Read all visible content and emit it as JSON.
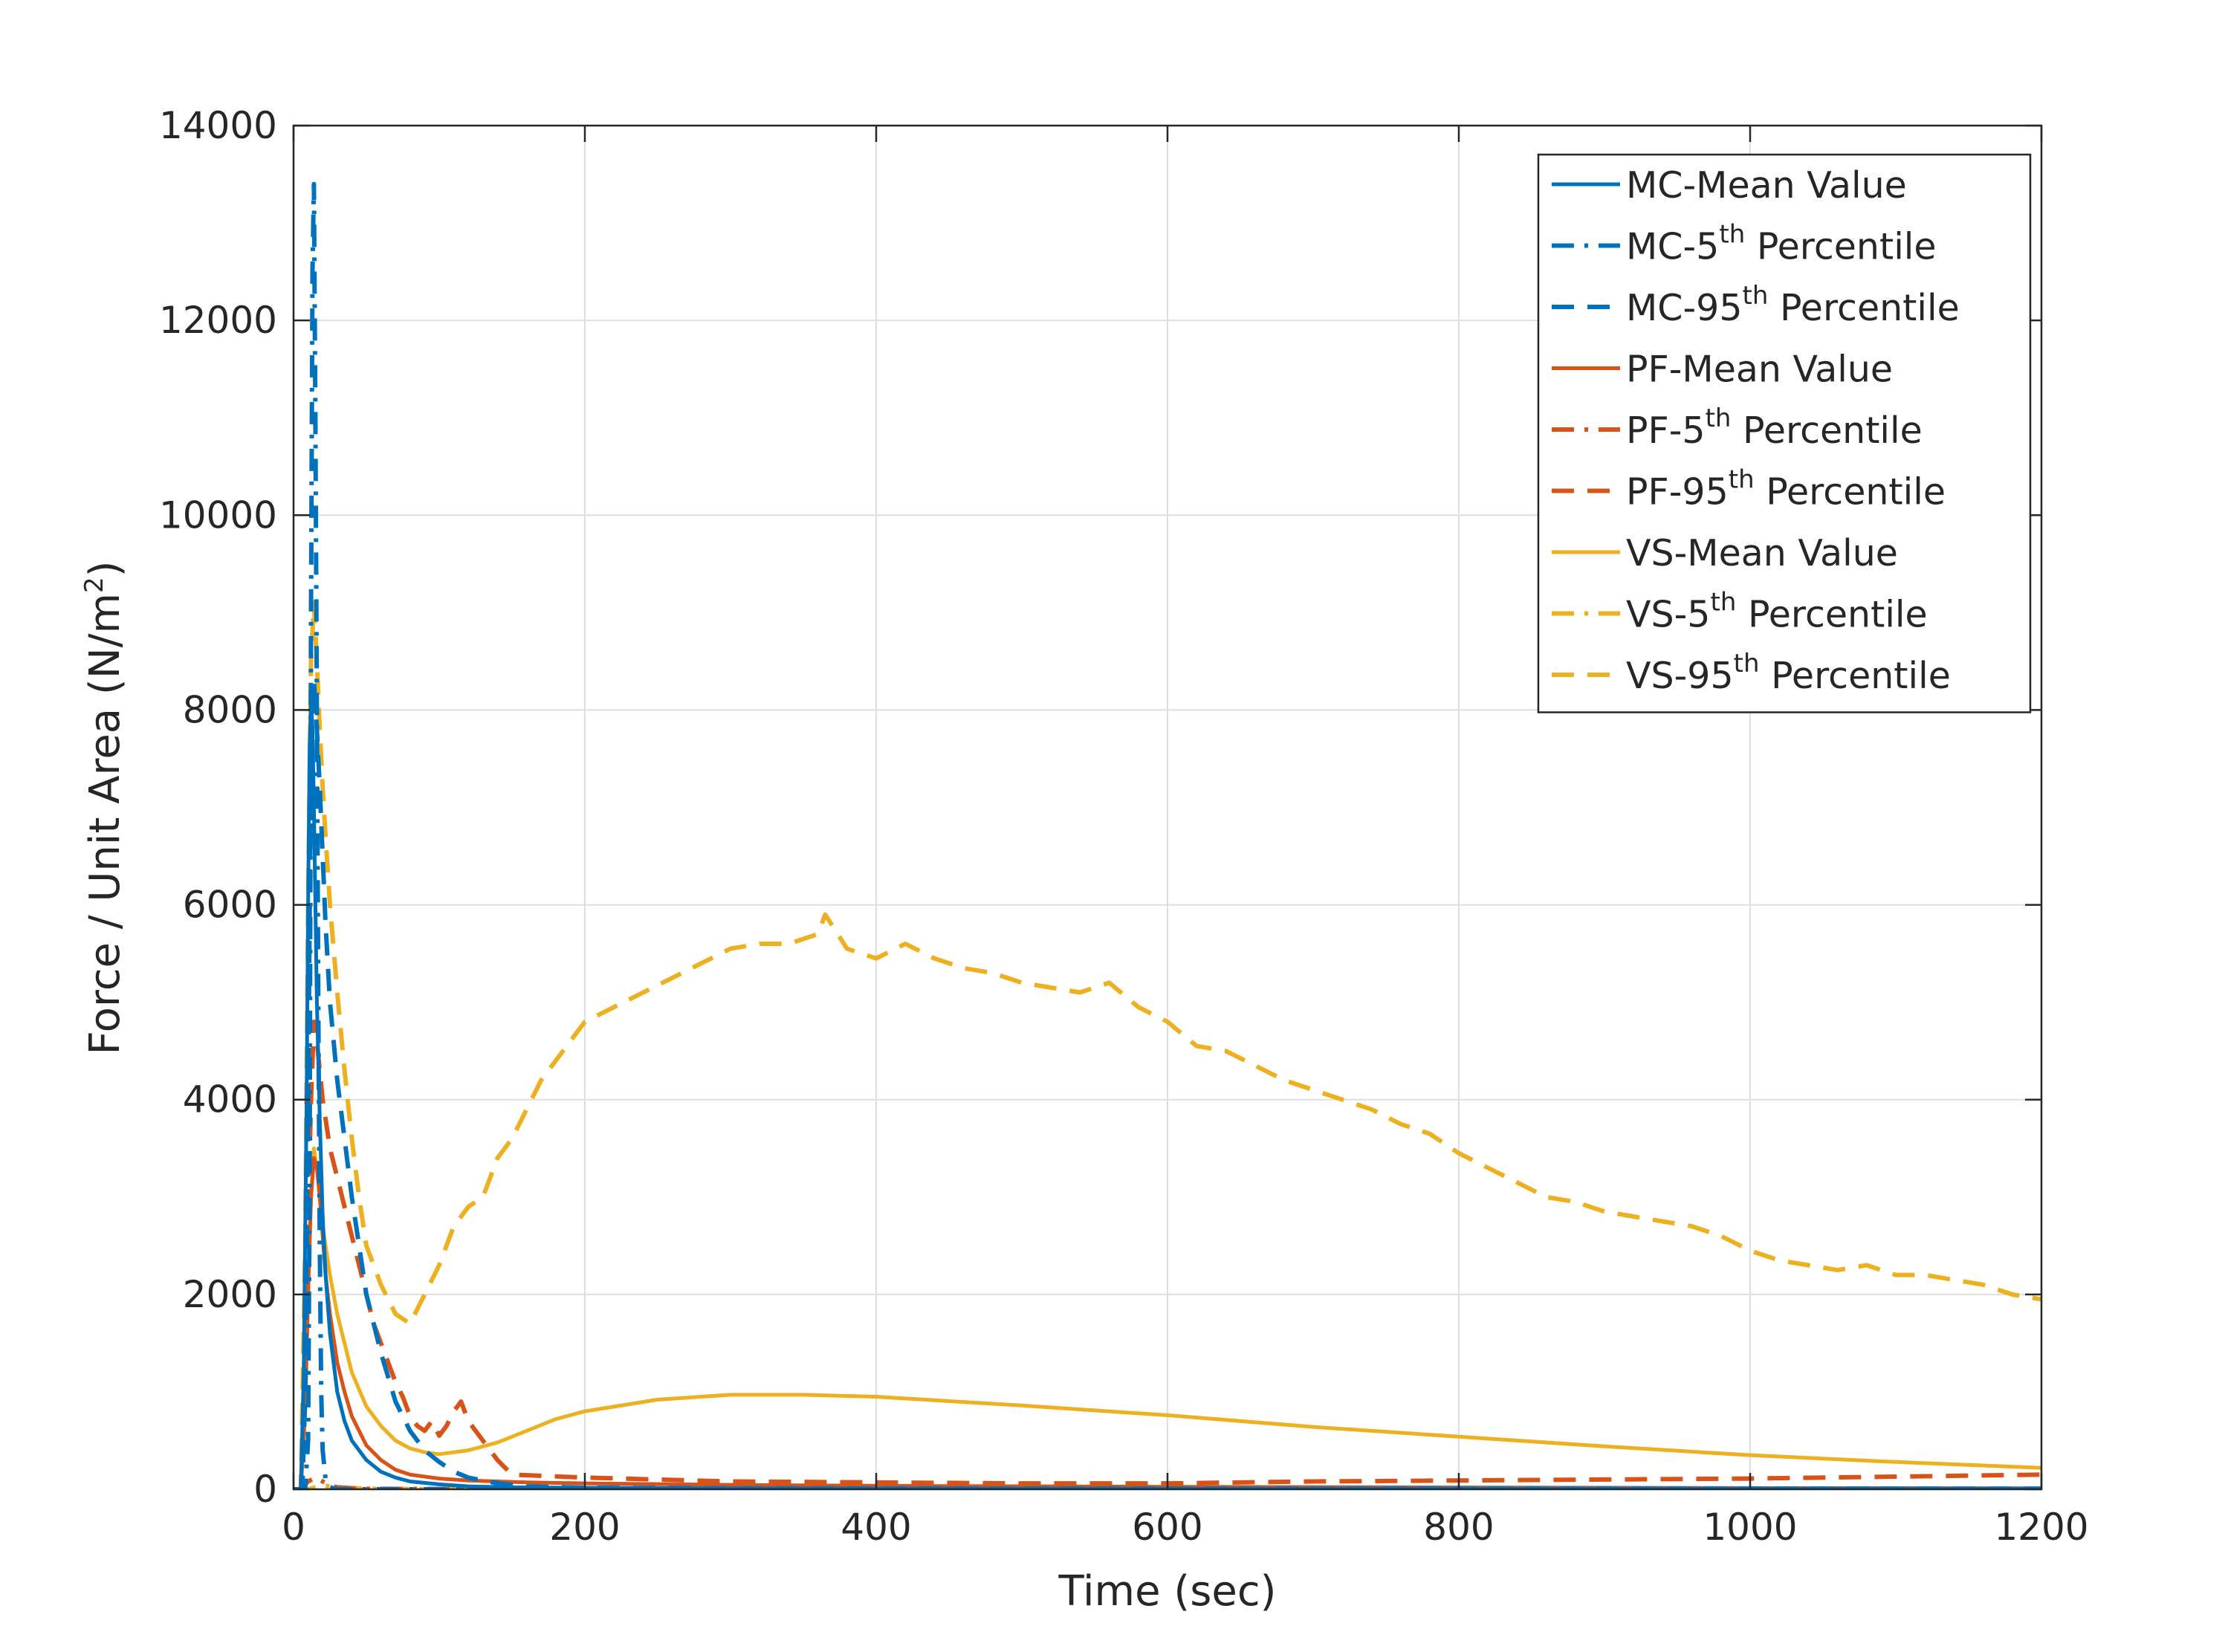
{
  "chart_data": {
    "type": "line",
    "title": "",
    "xlabel": "Time (sec)",
    "ylabel_main": "Force / Unit Area (N/m",
    "ylabel_sup": "2",
    "ylabel_close": ")",
    "xlim": [
      0,
      1200
    ],
    "ylim": [
      0,
      14000
    ],
    "xticks": [
      0,
      200,
      400,
      600,
      800,
      1000,
      1200
    ],
    "yticks": [
      0,
      2000,
      4000,
      6000,
      8000,
      10000,
      12000,
      14000
    ],
    "xtick_labels": [
      "0",
      "200",
      "400",
      "600",
      "800",
      "1000",
      "1200"
    ],
    "ytick_labels": [
      "0",
      "2000",
      "4000",
      "6000",
      "8000",
      "10000",
      "12000",
      "14000"
    ],
    "grid": true,
    "legend_position": "top-right",
    "colors": {
      "MC": "#0072BD",
      "PF": "#D95319",
      "VS": "#EDB120"
    },
    "series": [
      {
        "name": "MC-Mean Value",
        "legend_prefix": "MC-Mean Value",
        "legend_sup": "",
        "legend_suffix": "",
        "color": "#0072BD",
        "style": "solid",
        "x": [
          0,
          5,
          7,
          9,
          10,
          11,
          12,
          13,
          14,
          15,
          16,
          18,
          20,
          22,
          25,
          30,
          35,
          40,
          50,
          60,
          70,
          80,
          100,
          120,
          150,
          200,
          300,
          400,
          600,
          800,
          1000,
          1200
        ],
        "y": [
          0,
          0,
          1200,
          4000,
          6000,
          7600,
          8100,
          7800,
          7000,
          6000,
          5000,
          3800,
          2800,
          2200,
          1600,
          1000,
          700,
          500,
          300,
          180,
          120,
          80,
          50,
          30,
          20,
          15,
          10,
          8,
          6,
          5,
          5,
          5
        ]
      },
      {
        "name": "MC-5th Percentile",
        "legend_prefix": "MC-5",
        "legend_sup": "th",
        "legend_suffix": " Percentile",
        "color": "#0072BD",
        "style": "dashdot",
        "x": [
          0,
          8,
          10,
          11,
          12,
          13,
          14,
          15,
          16,
          17,
          18,
          19,
          20,
          22,
          25,
          30,
          50,
          100,
          400,
          800,
          1200
        ],
        "y": [
          0,
          0,
          500,
          3000,
          9000,
          12500,
          13400,
          11000,
          8000,
          5000,
          2500,
          1000,
          400,
          100,
          20,
          0,
          0,
          0,
          0,
          0,
          0
        ]
      },
      {
        "name": "MC-95th Percentile",
        "legend_prefix": "MC-95",
        "legend_sup": "th",
        "legend_suffix": " Percentile",
        "color": "#0072BD",
        "style": "dashed",
        "x": [
          0,
          6,
          8,
          10,
          12,
          14,
          16,
          18,
          20,
          22,
          25,
          30,
          35,
          40,
          45,
          50,
          60,
          70,
          80,
          90,
          100,
          110,
          120,
          140,
          160,
          200,
          300,
          400,
          600,
          800,
          1000,
          1200
        ],
        "y": [
          0,
          0,
          1000,
          4000,
          7500,
          8300,
          7800,
          7200,
          6500,
          5800,
          5000,
          4200,
          3600,
          3000,
          2500,
          2000,
          1400,
          900,
          600,
          400,
          280,
          180,
          120,
          60,
          30,
          15,
          10,
          8,
          6,
          5,
          5,
          5
        ]
      },
      {
        "name": "PF-Mean Value",
        "legend_prefix": "PF-Mean Value",
        "legend_sup": "",
        "legend_suffix": "",
        "color": "#D95319",
        "style": "solid",
        "x": [
          0,
          5,
          8,
          10,
          12,
          14,
          16,
          18,
          20,
          22,
          25,
          30,
          35,
          40,
          50,
          60,
          70,
          80,
          100,
          120,
          140,
          160,
          200,
          300,
          400,
          600,
          800,
          1000,
          1200
        ],
        "y": [
          0,
          0,
          800,
          2000,
          3000,
          3400,
          3300,
          3000,
          2600,
          2200,
          1800,
          1300,
          1000,
          750,
          450,
          300,
          200,
          150,
          110,
          90,
          80,
          70,
          60,
          45,
          35,
          25,
          18,
          12,
          10
        ]
      },
      {
        "name": "PF-5th Percentile",
        "legend_prefix": "PF-5",
        "legend_sup": "th",
        "legend_suffix": " Percentile",
        "color": "#D95319",
        "style": "dashdot",
        "x": [
          0,
          5,
          10,
          15,
          20,
          25,
          30,
          40,
          50,
          100,
          200,
          400,
          600,
          800,
          1000,
          1200
        ],
        "y": [
          0,
          0,
          80,
          120,
          80,
          40,
          20,
          10,
          5,
          3,
          2,
          2,
          2,
          2,
          2,
          2
        ]
      },
      {
        "name": "PF-95th Percentile",
        "legend_prefix": "PF-95",
        "legend_sup": "th",
        "legend_suffix": " Percentile",
        "color": "#D95319",
        "style": "dashed",
        "x": [
          0,
          5,
          8,
          10,
          12,
          14,
          16,
          18,
          20,
          22,
          25,
          30,
          35,
          40,
          45,
          50,
          55,
          60,
          65,
          70,
          75,
          80,
          85,
          90,
          95,
          100,
          105,
          110,
          115,
          120,
          125,
          130,
          135,
          140,
          150,
          200,
          300,
          400,
          500,
          600,
          700,
          800,
          900,
          1000,
          1100,
          1200
        ],
        "y": [
          0,
          0,
          1200,
          2800,
          4000,
          4800,
          4600,
          4300,
          4000,
          3800,
          3500,
          3200,
          2900,
          2600,
          2300,
          2000,
          1700,
          1500,
          1300,
          1100,
          950,
          750,
          650,
          600,
          700,
          550,
          650,
          800,
          900,
          700,
          600,
          500,
          400,
          300,
          150,
          120,
          80,
          70,
          60,
          60,
          80,
          90,
          100,
          110,
          130,
          150
        ]
      },
      {
        "name": "VS-Mean Value",
        "legend_prefix": "VS-Mean Value",
        "legend_sup": "",
        "legend_suffix": "",
        "color": "#EDB120",
        "style": "solid",
        "x": [
          0,
          5,
          8,
          10,
          12,
          14,
          16,
          18,
          20,
          25,
          30,
          35,
          40,
          50,
          60,
          70,
          80,
          90,
          100,
          120,
          140,
          160,
          180,
          200,
          250,
          300,
          350,
          400,
          500,
          600,
          700,
          800,
          900,
          1000,
          1100,
          1200
        ],
        "y": [
          0,
          0,
          1000,
          2000,
          3000,
          3500,
          3300,
          3000,
          2700,
          2200,
          1800,
          1500,
          1200,
          850,
          650,
          500,
          420,
          380,
          360,
          400,
          480,
          600,
          720,
          800,
          920,
          970,
          970,
          950,
          860,
          760,
          640,
          540,
          440,
          350,
          280,
          220
        ]
      },
      {
        "name": "VS-5th Percentile",
        "legend_prefix": "VS-5",
        "legend_sup": "th",
        "legend_suffix": " Percentile",
        "color": "#EDB120",
        "style": "dashdot",
        "x": [
          0,
          10,
          15,
          20,
          30,
          50,
          100,
          200,
          400,
          600,
          800,
          1000,
          1200
        ],
        "y": [
          0,
          0,
          20,
          40,
          20,
          5,
          0,
          0,
          0,
          0,
          0,
          0,
          0
        ]
      },
      {
        "name": "VS-95th Percentile",
        "legend_prefix": "VS-95",
        "legend_sup": "th",
        "legend_suffix": " Percentile",
        "color": "#EDB120",
        "style": "dashed",
        "x": [
          0,
          5,
          8,
          10,
          12,
          14,
          16,
          18,
          20,
          22,
          25,
          30,
          35,
          40,
          45,
          50,
          60,
          70,
          80,
          90,
          100,
          110,
          120,
          130,
          140,
          150,
          160,
          170,
          180,
          190,
          200,
          220,
          240,
          260,
          280,
          300,
          320,
          340,
          360,
          365,
          380,
          400,
          420,
          440,
          460,
          480,
          500,
          520,
          540,
          560,
          580,
          600,
          620,
          640,
          660,
          680,
          700,
          720,
          740,
          760,
          780,
          800,
          820,
          840,
          860,
          880,
          900,
          920,
          940,
          960,
          980,
          1000,
          1020,
          1040,
          1060,
          1080,
          1100,
          1120,
          1140,
          1160,
          1180,
          1200
        ],
        "y": [
          0,
          0,
          2500,
          6000,
          8500,
          9100,
          8500,
          7800,
          7200,
          6700,
          6000,
          5100,
          4300,
          3600,
          3000,
          2500,
          2100,
          1800,
          1700,
          2000,
          2300,
          2700,
          2900,
          3000,
          3400,
          3600,
          3900,
          4200,
          4400,
          4600,
          4800,
          4950,
          5100,
          5250,
          5400,
          5550,
          5600,
          5600,
          5700,
          5900,
          5550,
          5450,
          5600,
          5450,
          5350,
          5300,
          5200,
          5150,
          5100,
          5200,
          4950,
          4800,
          4550,
          4500,
          4350,
          4200,
          4100,
          4000,
          3900,
          3750,
          3650,
          3450,
          3300,
          3150,
          3000,
          2950,
          2850,
          2800,
          2750,
          2700,
          2600,
          2450,
          2350,
          2300,
          2250,
          2300,
          2200,
          2200,
          2150,
          2100,
          2000,
          1950
        ]
      }
    ]
  }
}
